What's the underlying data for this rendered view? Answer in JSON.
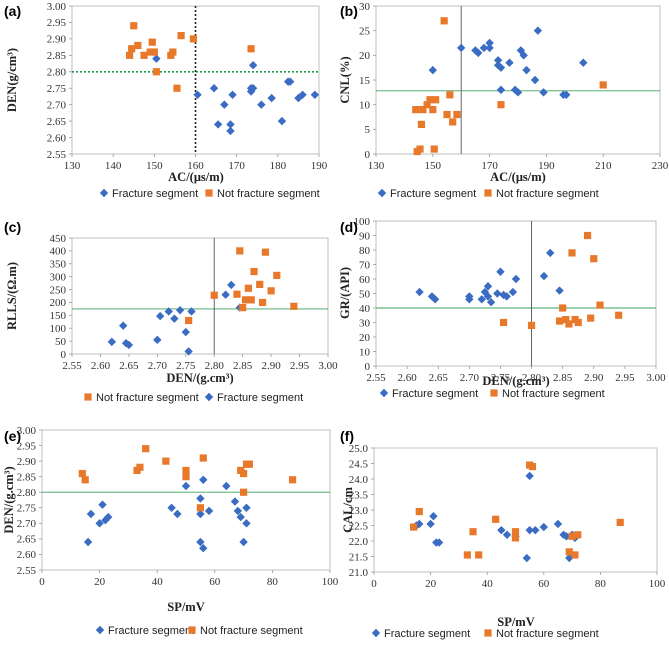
{
  "colors": {
    "fracture": "#3b6cc4",
    "not_fracture": "#e8792b",
    "threshold_green": "#3aa35c",
    "threshold_gray": "#555555"
  },
  "chart_data": [
    {
      "id": "a",
      "panel_label": "(a)",
      "type": "scatter",
      "xlabel": "AC/(μs/m)",
      "ylabel": "DEN(g/cm³)",
      "xlim": [
        130,
        190
      ],
      "ylim": [
        2.55,
        3
      ],
      "xticks": [
        130,
        140,
        150,
        160,
        170,
        180,
        190
      ],
      "yticks": [
        2.55,
        2.6,
        2.65,
        2.7,
        2.75,
        2.8,
        2.85,
        2.9,
        2.95,
        3
      ],
      "ytick_decimals": 2,
      "vline": {
        "value": 160,
        "style": "dotted",
        "color": "#222222"
      },
      "hline": {
        "value": 2.8,
        "style": "dotted",
        "color": "#1e9a4e"
      },
      "legend_order": [
        "fracture",
        "not_fracture"
      ],
      "legend": {
        "fracture": "Fracture segment",
        "not_fracture": "Not fracture segment"
      },
      "series": [
        {
          "name": "Fracture segment",
          "key": "fracture",
          "x": [
            150.5,
            160.5,
            164.5,
            165.5,
            167,
            168.5,
            168.5,
            169,
            173.5,
            173.5,
            174,
            174,
            176,
            178.5,
            181,
            182.5,
            183,
            185,
            186,
            189
          ],
          "y": [
            2.84,
            2.73,
            2.75,
            2.64,
            2.7,
            2.62,
            2.64,
            2.73,
            2.75,
            2.74,
            2.75,
            2.82,
            2.7,
            2.72,
            2.65,
            2.77,
            2.77,
            2.72,
            2.73,
            2.73
          ]
        },
        {
          "name": "Not fracture segment",
          "key": "not_fracture",
          "x": [
            144,
            144.5,
            145,
            146,
            147.5,
            149,
            149.5,
            150,
            150.5,
            154,
            154.5,
            155.5,
            156.5,
            159.5,
            173.5
          ],
          "y": [
            2.85,
            2.87,
            2.94,
            2.88,
            2.85,
            2.86,
            2.89,
            2.86,
            2.8,
            2.85,
            2.86,
            2.75,
            2.91,
            2.9,
            2.87
          ]
        }
      ]
    },
    {
      "id": "b",
      "panel_label": "(b)",
      "type": "scatter",
      "xlabel": "AC/(μs/m)",
      "ylabel": "CNL(%)",
      "xlim": [
        130,
        230
      ],
      "ylim": [
        0,
        30
      ],
      "xticks": [
        130,
        150,
        170,
        190,
        210,
        230
      ],
      "yticks": [
        0,
        5,
        10,
        15,
        20,
        25,
        30
      ],
      "ytick_decimals": 0,
      "vline": {
        "value": 160,
        "style": "solid",
        "color": "#555555"
      },
      "hline": {
        "value": 12.8,
        "style": "solid",
        "color": "#3aa35c"
      },
      "legend_order": [
        "fracture",
        "not_fracture"
      ],
      "legend": {
        "fracture": "Fracture segment",
        "not_fracture": "Not fracture segment"
      },
      "series": [
        {
          "name": "Fracture segment",
          "key": "fracture",
          "x": [
            150,
            160,
            165,
            166,
            168,
            170,
            170,
            173,
            173,
            174,
            174,
            177,
            179,
            180,
            181,
            182,
            183,
            186,
            187,
            189,
            196,
            197,
            203
          ],
          "y": [
            17,
            21.5,
            21,
            20.5,
            21.5,
            22.5,
            21.5,
            19,
            18,
            17.5,
            13,
            18.5,
            13,
            12.5,
            21,
            20,
            17,
            15,
            25,
            12.5,
            12,
            12,
            18.5
          ]
        },
        {
          "name": "Not fracture segment",
          "key": "not_fracture",
          "x": [
            144,
            144.5,
            145.5,
            146,
            146.5,
            148,
            149,
            150,
            150.5,
            151,
            154,
            155,
            156,
            157,
            158.5,
            174,
            210
          ],
          "y": [
            9,
            0.5,
            1,
            6,
            9,
            10,
            11,
            9,
            1,
            11,
            27,
            8,
            12,
            6.5,
            8,
            10,
            14
          ]
        }
      ]
    },
    {
      "id": "c",
      "panel_label": "(c)",
      "type": "scatter",
      "xlabel": "DEN/(g.cm³)",
      "ylabel": "RLLS/(Ω.m)",
      "xlim": [
        2.55,
        3
      ],
      "ylim": [
        0,
        450
      ],
      "xticks": [
        2.55,
        2.6,
        2.65,
        2.7,
        2.75,
        2.8,
        2.85,
        2.9,
        2.95,
        3
      ],
      "yticks": [
        0,
        50,
        100,
        150,
        200,
        250,
        300,
        350,
        400,
        450
      ],
      "xtick_decimals": 2,
      "ytick_decimals": 0,
      "vline": {
        "value": 2.8,
        "style": "solid",
        "color": "#555555"
      },
      "hline": {
        "value": 175,
        "style": "solid",
        "color": "#3aa35c"
      },
      "legend_order": [
        "not_fracture",
        "fracture"
      ],
      "legend": {
        "fracture": "Fracture segment",
        "not_fracture": "Not fracture segment"
      },
      "series": [
        {
          "name": "Fracture segment",
          "key": "fracture",
          "x": [
            2.62,
            2.64,
            2.645,
            2.65,
            2.7,
            2.705,
            2.72,
            2.73,
            2.74,
            2.75,
            2.755,
            2.76,
            2.82,
            2.83,
            2.845
          ],
          "y": [
            47,
            110,
            42,
            35,
            55,
            147,
            165,
            137,
            170,
            85,
            10,
            165,
            230,
            268,
            180
          ]
        },
        {
          "name": "Not fracture segment",
          "key": "not_fracture",
          "x": [
            2.755,
            2.8,
            2.84,
            2.845,
            2.85,
            2.855,
            2.86,
            2.865,
            2.87,
            2.88,
            2.885,
            2.89,
            2.9,
            2.91,
            2.94
          ],
          "y": [
            130,
            228,
            232,
            400,
            180,
            210,
            255,
            210,
            320,
            270,
            200,
            395,
            245,
            305,
            185
          ]
        }
      ]
    },
    {
      "id": "d",
      "panel_label": "(d)",
      "type": "scatter",
      "xlabel": "DEN/(g.cm³)",
      "ylabel": "GR/(API)",
      "xlim": [
        2.55,
        3
      ],
      "ylim": [
        0,
        100
      ],
      "xticks": [
        2.55,
        2.6,
        2.65,
        2.7,
        2.75,
        2.8,
        2.85,
        2.9,
        2.95,
        3
      ],
      "yticks": [
        0,
        10,
        20,
        30,
        40,
        50,
        60,
        70,
        80,
        90,
        100
      ],
      "xtick_decimals": 2,
      "ytick_decimals": 0,
      "vline": {
        "value": 2.8,
        "style": "solid",
        "color": "#555555"
      },
      "hline": {
        "value": 40,
        "style": "solid",
        "color": "#3aa35c"
      },
      "legend_order": [
        "fracture",
        "not_fracture"
      ],
      "legend": {
        "fracture": "Fracture segment",
        "not_fracture": "Not fracture segment"
      },
      "series": [
        {
          "name": "Fracture segment",
          "key": "fracture",
          "x": [
            2.62,
            2.64,
            2.645,
            2.7,
            2.7,
            2.72,
            2.725,
            2.73,
            2.73,
            2.735,
            2.745,
            2.75,
            2.755,
            2.76,
            2.77,
            2.775,
            2.82,
            2.83,
            2.845
          ],
          "y": [
            51,
            48,
            46,
            48,
            46,
            46,
            51,
            55,
            48,
            44,
            50,
            65,
            49,
            48,
            51,
            60,
            62,
            78,
            52
          ]
        },
        {
          "name": "Not fracture segment",
          "key": "not_fracture",
          "x": [
            2.755,
            2.8,
            2.845,
            2.85,
            2.855,
            2.86,
            2.865,
            2.87,
            2.875,
            2.89,
            2.895,
            2.9,
            2.91,
            2.94
          ],
          "y": [
            30,
            28,
            31,
            40,
            32,
            29,
            78,
            32,
            30,
            90,
            33,
            74,
            42,
            35
          ]
        }
      ]
    },
    {
      "id": "e",
      "panel_label": "(e)",
      "type": "scatter",
      "xlabel": "SP/mV",
      "ylabel": "DEN/(g.cm³)",
      "xlim": [
        0,
        100
      ],
      "ylim": [
        2.55,
        3
      ],
      "xticks": [
        0,
        20,
        40,
        60,
        80,
        100
      ],
      "yticks": [
        2.55,
        2.6,
        2.65,
        2.7,
        2.75,
        2.8,
        2.85,
        2.9,
        2.95,
        3
      ],
      "ytick_decimals": 2,
      "hline": {
        "value": 2.8,
        "style": "solid",
        "color": "#3aa35c"
      },
      "legend_order": [
        "not_fracture",
        "fracture"
      ],
      "legend": {
        "fracture": "Fracture segment",
        "not_fracture": "Not fracture segment"
      },
      "series": [
        {
          "name": "Fracture segment",
          "key": "fracture",
          "x": [
            16,
            17,
            20,
            21,
            22,
            23,
            45,
            47,
            50,
            55,
            55,
            55,
            56,
            56,
            58,
            64,
            67,
            68,
            69,
            70,
            71,
            71
          ],
          "y": [
            2.64,
            2.73,
            2.7,
            2.76,
            2.71,
            2.72,
            2.75,
            2.73,
            2.82,
            2.78,
            2.73,
            2.64,
            2.84,
            2.62,
            2.74,
            2.82,
            2.77,
            2.74,
            2.72,
            2.64,
            2.75,
            2.7
          ]
        },
        {
          "name": "Not fracture segment",
          "key": "not_fracture",
          "x": [
            14,
            15,
            33,
            34,
            36,
            43,
            50,
            50,
            55,
            56,
            69,
            70,
            70,
            71,
            72,
            87
          ],
          "y": [
            2.86,
            2.84,
            2.87,
            2.88,
            2.94,
            2.9,
            2.87,
            2.85,
            2.75,
            2.91,
            2.87,
            2.86,
            2.8,
            2.89,
            2.89,
            2.84
          ]
        }
      ]
    },
    {
      "id": "f",
      "panel_label": "(f)",
      "type": "scatter",
      "xlabel": "SP/mV",
      "ylabel": "CAL/cm",
      "xlim": [
        0,
        100
      ],
      "ylim": [
        21,
        25
      ],
      "xticks": [
        0,
        20,
        40,
        60,
        80,
        100
      ],
      "yticks": [
        21,
        21.5,
        22,
        22.5,
        23,
        23.5,
        24,
        24.5,
        25
      ],
      "ytick_decimals": 1,
      "legend_order": [
        "fracture",
        "not_fracture"
      ],
      "legend": {
        "fracture": "Fracture segment",
        "not_fracture": "Not fracture segment"
      },
      "series": [
        {
          "name": "Fracture segment",
          "key": "fracture",
          "x": [
            15,
            16,
            20,
            21,
            22,
            23,
            45,
            47,
            50,
            54,
            55,
            55,
            57,
            60,
            65,
            67,
            68,
            69,
            70,
            71
          ],
          "y": [
            22.5,
            22.55,
            22.55,
            22.8,
            21.95,
            21.95,
            22.35,
            22.2,
            22.15,
            21.45,
            22.35,
            24.1,
            22.35,
            22.45,
            22.55,
            22.2,
            22.15,
            21.45,
            22.2,
            22.1
          ]
        },
        {
          "name": "Not fracture segment",
          "key": "not_fracture",
          "x": [
            14,
            16,
            33,
            35,
            37,
            43,
            50,
            50,
            55,
            56,
            69,
            70,
            71,
            72,
            87
          ],
          "y": [
            22.45,
            22.95,
            21.55,
            22.3,
            21.55,
            22.7,
            22.1,
            22.3,
            24.45,
            24.4,
            21.65,
            22.15,
            21.55,
            22.2,
            22.6
          ]
        }
      ]
    }
  ]
}
